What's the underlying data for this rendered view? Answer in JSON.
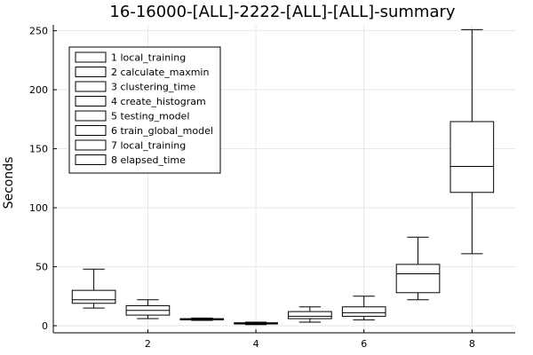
{
  "chart_data": {
    "type": "box",
    "title": "16-16000-[ALL]-2222-[ALL]-[ALL]-summary",
    "xlabel": "",
    "ylabel": "Seconds",
    "xlim": [
      0.25,
      8.8
    ],
    "ylim": [
      -6,
      255
    ],
    "xticks": [
      2,
      4,
      6,
      8
    ],
    "yticks": [
      0,
      50,
      100,
      150,
      200,
      250
    ],
    "grid": true,
    "legend_position": "top-left",
    "series": [
      {
        "name": "1 local_training",
        "x": 1,
        "whisker_low": 15,
        "q1": 19,
        "median": 22,
        "q3": 30,
        "whisker_high": 48
      },
      {
        "name": "2 calculate_maxmin",
        "x": 2,
        "whisker_low": 6,
        "q1": 9,
        "median": 13,
        "q3": 17,
        "whisker_high": 22
      },
      {
        "name": "3 clustering_time",
        "x": 3,
        "whisker_low": 4.5,
        "q1": 5,
        "median": 5.5,
        "q3": 6,
        "whisker_high": 6.5
      },
      {
        "name": "4 create_histogram",
        "x": 4,
        "whisker_low": 1,
        "q1": 1.5,
        "median": 2,
        "q3": 2.5,
        "whisker_high": 3
      },
      {
        "name": "5 testing_model",
        "x": 5,
        "whisker_low": 3,
        "q1": 6,
        "median": 8,
        "q3": 12,
        "whisker_high": 16
      },
      {
        "name": "6 train_global_model",
        "x": 6,
        "whisker_low": 5,
        "q1": 8,
        "median": 11,
        "q3": 16,
        "whisker_high": 25
      },
      {
        "name": "7 local_training",
        "x": 7,
        "whisker_low": 22,
        "q1": 28,
        "median": 44,
        "q3": 52,
        "whisker_high": 75
      },
      {
        "name": "8 elapsed_time",
        "x": 8,
        "whisker_low": 61,
        "q1": 113,
        "median": 135,
        "q3": 173,
        "whisker_high": 251
      }
    ]
  }
}
